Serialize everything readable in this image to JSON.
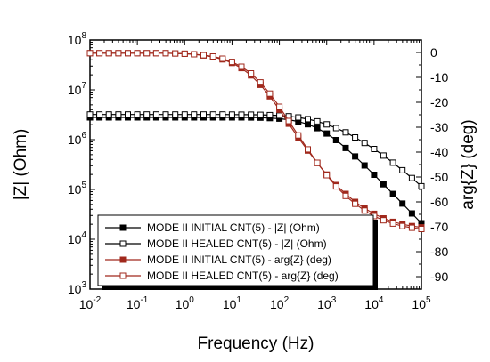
{
  "chart_data": {
    "type": "line",
    "xlabel": "Frequency (Hz)",
    "ylabel_left": "|Z| (Ohm)",
    "ylabel_right": "arg{Z} (deg)",
    "x_scale": "log",
    "y_left_scale": "log",
    "xlim": [
      0.01,
      100000
    ],
    "ylim_left": [
      1000,
      100000000
    ],
    "ylim_right": [
      -95,
      5
    ],
    "x_ticks": [
      {
        "value": 0.01,
        "base": "10",
        "exp": "-2"
      },
      {
        "value": 0.1,
        "base": "10",
        "exp": "-1"
      },
      {
        "value": 1,
        "base": "10",
        "exp": "0"
      },
      {
        "value": 10,
        "base": "10",
        "exp": "1"
      },
      {
        "value": 100,
        "base": "10",
        "exp": "2"
      },
      {
        "value": 1000,
        "base": "10",
        "exp": "3"
      },
      {
        "value": 10000,
        "base": "10",
        "exp": "4"
      },
      {
        "value": 100000,
        "base": "10",
        "exp": "5"
      }
    ],
    "y_left_ticks": [
      {
        "value": 1000,
        "base": "10",
        "exp": "3"
      },
      {
        "value": 10000,
        "base": "10",
        "exp": "4"
      },
      {
        "value": 100000,
        "base": "10",
        "exp": "5"
      },
      {
        "value": 1000000,
        "base": "10",
        "exp": "6"
      },
      {
        "value": 10000000,
        "base": "10",
        "exp": "7"
      },
      {
        "value": 100000000,
        "base": "10",
        "exp": "8"
      }
    ],
    "y_right_ticks": [
      "0",
      "-10",
      "-20",
      "-30",
      "-40",
      "-50",
      "-60",
      "-70",
      "-80",
      "-90"
    ],
    "grid": false,
    "legend_position": "bottom-left",
    "x": [
      0.01,
      0.0158,
      0.0251,
      0.0398,
      0.0631,
      0.1,
      0.158,
      0.251,
      0.398,
      0.631,
      1,
      1.58,
      2.51,
      3.98,
      6.31,
      10,
      15.8,
      25.1,
      39.8,
      63.1,
      100,
      158,
      251,
      398,
      631,
      1000,
      1580,
      2510,
      3980,
      6310,
      10000,
      15800,
      25100,
      39800,
      63100,
      100000
    ],
    "series": [
      {
        "name": "MODE II INITIAL CNT(5) - |Z| (Ohm)",
        "axis": "left",
        "color": "#000000",
        "marker": "filled-square",
        "values": [
          2800000,
          2800000,
          2800000,
          2800000,
          2800000,
          2800000,
          2800000,
          2800000,
          2800000,
          2800000,
          2800000,
          2800000,
          2800000,
          2800000,
          2800000,
          2800000,
          2800000,
          2780000,
          2760000,
          2710000,
          2640000,
          2510000,
          2310000,
          2040000,
          1700000,
          1330000,
          980000,
          680000,
          460000,
          303000,
          197000,
          127000,
          81000,
          52000,
          33000,
          21000
        ]
      },
      {
        "name": "MODE II HEALED CNT(5) - |Z| (Ohm)",
        "axis": "left",
        "color": "#000000",
        "marker": "open-square",
        "values": [
          3200000,
          3200000,
          3200000,
          3200000,
          3200000,
          3200000,
          3200000,
          3200000,
          3200000,
          3200000,
          3200000,
          3200000,
          3200000,
          3200000,
          3200000,
          3190000,
          3180000,
          3170000,
          3150000,
          3110000,
          3050000,
          2950000,
          2800000,
          2590000,
          2330000,
          2030000,
          1710000,
          1400000,
          1110000,
          860000,
          650000,
          480000,
          345000,
          243000,
          169000,
          116000
        ]
      },
      {
        "name": "MODE II INITIAL CNT(5) - arg{Z} (deg)",
        "axis": "right",
        "color": "#a0281c",
        "marker": "filled-square",
        "values": [
          -0.3,
          -0.3,
          -0.3,
          -0.3,
          -0.3,
          -0.3,
          -0.3,
          -0.3,
          -0.3,
          -0.4,
          -0.5,
          -0.7,
          -1.2,
          -1.8,
          -2.8,
          -4.2,
          -6.3,
          -9.2,
          -13.0,
          -17.6,
          -23.0,
          -28.6,
          -34.2,
          -39.4,
          -44.4,
          -49.0,
          -53.2,
          -56.8,
          -60.0,
          -62.6,
          -64.8,
          -66.6,
          -68.0,
          -69.0,
          -69.7,
          -70.2
        ]
      },
      {
        "name": "MODE II HEALED CNT(5) - arg{Z} (deg)",
        "axis": "right",
        "color": "#a0281c",
        "marker": "open-square",
        "values": [
          -0.3,
          -0.3,
          -0.3,
          -0.3,
          -0.3,
          -0.3,
          -0.3,
          -0.3,
          -0.3,
          -0.4,
          -0.5,
          -0.7,
          -1.1,
          -1.6,
          -2.5,
          -3.8,
          -5.7,
          -8.4,
          -12.0,
          -16.5,
          -21.8,
          -27.5,
          -33.3,
          -38.9,
          -44.3,
          -49.3,
          -53.8,
          -57.6,
          -60.8,
          -63.5,
          -65.7,
          -67.4,
          -68.7,
          -69.7,
          -70.4,
          -70.9
        ]
      }
    ]
  }
}
